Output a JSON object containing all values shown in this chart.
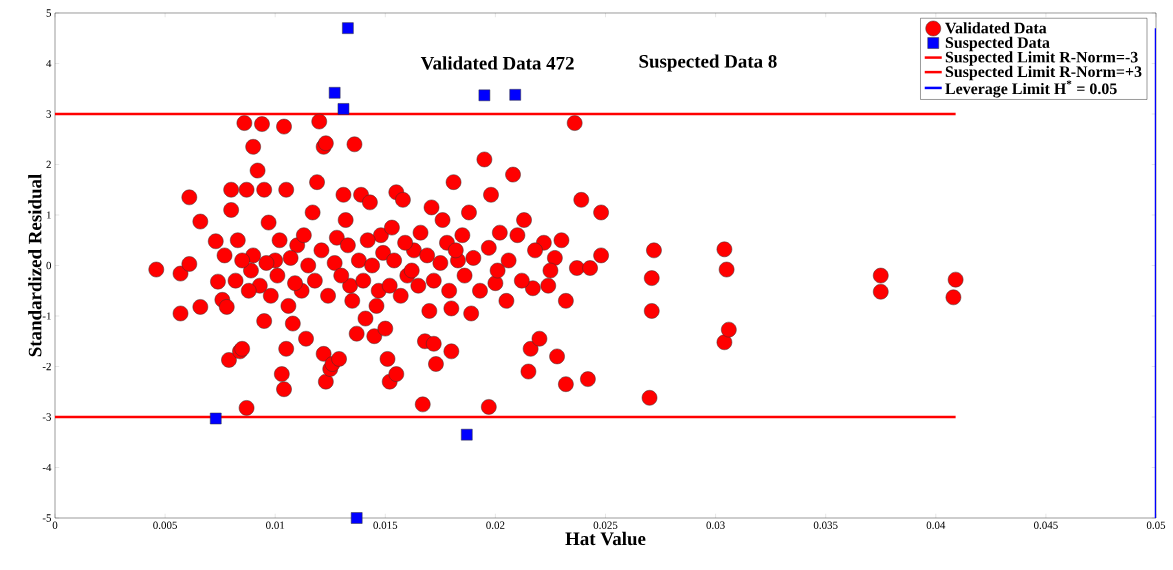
{
  "chart_data": {
    "type": "scatter",
    "xlabel": "Hat Value",
    "ylabel": "Standardized Residual",
    "annotations": [
      "Validated Data 472",
      "Suspected Data 8"
    ],
    "xlim": [
      0,
      0.05
    ],
    "ylim": [
      -5,
      5
    ],
    "xticks": [
      0,
      0.005,
      0.01,
      0.015,
      0.02,
      0.025,
      0.03,
      0.035,
      0.04,
      0.045,
      0.05
    ],
    "yticks": [
      -5,
      -4,
      -3,
      -2,
      -1,
      0,
      1,
      2,
      3,
      4,
      5
    ],
    "grid": false,
    "legend": "top right",
    "series": [
      {
        "name": "Validated Data",
        "marker": "circle",
        "color": "#ff0000",
        "x": [
          0.0046,
          0.0057,
          0.0057,
          0.0061,
          0.0061,
          0.0066,
          0.0066,
          0.0073,
          0.0074,
          0.0076,
          0.0078,
          0.0079,
          0.008,
          0.008,
          0.0083,
          0.0084,
          0.0085,
          0.0086,
          0.0087,
          0.0087,
          0.0089,
          0.009,
          0.0092,
          0.0094,
          0.0095,
          0.0095,
          0.0097,
          0.01,
          0.0101,
          0.0103,
          0.0104,
          0.0104,
          0.0105,
          0.0105,
          0.0106,
          0.0108,
          0.011,
          0.0112,
          0.0114,
          0.0117,
          0.0119,
          0.012,
          0.0122,
          0.0123,
          0.0122,
          0.0123,
          0.0125,
          0.0126,
          0.0128,
          0.0129,
          0.0131,
          0.0132,
          0.0134,
          0.0136,
          0.0137,
          0.0139,
          0.0141,
          0.0143,
          0.0145,
          0.0147,
          0.0148,
          0.015,
          0.0151,
          0.0152,
          0.0153,
          0.0155,
          0.0155,
          0.0158,
          0.016,
          0.0163,
          0.0166,
          0.0167,
          0.0168,
          0.017,
          0.0171,
          0.0172,
          0.0173,
          0.0176,
          0.0178,
          0.018,
          0.018,
          0.0181,
          0.0183,
          0.0185,
          0.0188,
          0.0189,
          0.0195,
          0.0197,
          0.0198,
          0.02,
          0.0202,
          0.0205,
          0.0208,
          0.021,
          0.0213,
          0.0215,
          0.0216,
          0.0217,
          0.022,
          0.0222,
          0.0224,
          0.0227,
          0.0228,
          0.023,
          0.0232,
          0.0232,
          0.0236,
          0.0237,
          0.0239,
          0.0242,
          0.0243,
          0.0248,
          0.0248,
          0.027,
          0.0271,
          0.0271,
          0.0272,
          0.0304,
          0.0304,
          0.0305,
          0.0306,
          0.0375,
          0.0375,
          0.0409,
          0.0408,
          0.009,
          0.0093,
          0.0096,
          0.0098,
          0.0102,
          0.0107,
          0.0109,
          0.0113,
          0.0115,
          0.0118,
          0.0121,
          0.0124,
          0.0127,
          0.013,
          0.0133,
          0.0135,
          0.0138,
          0.014,
          0.0142,
          0.0144,
          0.0146,
          0.0149,
          0.0152,
          0.0154,
          0.0157,
          0.0159,
          0.0162,
          0.0165,
          0.0169,
          0.0172,
          0.0175,
          0.0179,
          0.0182,
          0.0186,
          0.019,
          0.0193,
          0.0197,
          0.0201,
          0.0206,
          0.0212,
          0.0218,
          0.0225,
          0.0082,
          0.0085,
          0.0077,
          0.0088
        ],
        "values": [
          -0.08,
          -0.16,
          -0.95,
          1.35,
          0.03,
          0.87,
          -0.82,
          0.48,
          -0.32,
          -0.68,
          -0.82,
          -1.87,
          1.5,
          1.1,
          0.5,
          -1.7,
          -1.65,
          2.82,
          -2.82,
          1.5,
          -0.1,
          2.35,
          1.88,
          2.8,
          1.5,
          -1.1,
          0.85,
          0.1,
          -0.2,
          -2.15,
          -2.45,
          2.75,
          1.5,
          -1.65,
          -0.8,
          -1.15,
          0.4,
          -0.5,
          -1.45,
          1.05,
          1.65,
          2.85,
          2.35,
          2.42,
          -1.75,
          -2.3,
          -2.05,
          -1.95,
          0.55,
          -1.85,
          1.4,
          0.9,
          -0.4,
          2.4,
          -1.35,
          1.4,
          -1.05,
          1.25,
          -1.4,
          -0.5,
          0.6,
          -1.25,
          -1.85,
          -2.3,
          0.75,
          1.45,
          -2.15,
          1.3,
          -0.2,
          0.3,
          0.65,
          -2.75,
          -1.5,
          -0.9,
          1.15,
          -1.55,
          -1.95,
          0.9,
          0.45,
          -1.7,
          -0.85,
          1.65,
          0.1,
          0.6,
          1.05,
          -0.95,
          2.1,
          -2.8,
          1.4,
          -0.35,
          0.65,
          -0.7,
          1.8,
          0.6,
          0.9,
          -2.1,
          -1.65,
          -0.45,
          -1.45,
          0.45,
          -0.4,
          0.15,
          -1.8,
          0.5,
          -2.35,
          -0.7,
          2.82,
          -0.05,
          1.3,
          -2.25,
          -0.05,
          1.05,
          0.2,
          -2.62,
          -0.9,
          -0.25,
          0.3,
          0.32,
          -1.52,
          -0.08,
          -1.27,
          -0.2,
          -0.52,
          -0.28,
          -0.63,
          0.2,
          -0.4,
          0.05,
          -0.6,
          0.5,
          0.15,
          -0.35,
          0.6,
          0.0,
          -0.3,
          0.3,
          -0.6,
          0.05,
          -0.2,
          0.4,
          -0.7,
          0.1,
          -0.3,
          0.5,
          0.0,
          -0.8,
          0.25,
          -0.4,
          0.1,
          -0.6,
          0.45,
          -0.1,
          -0.4,
          0.2,
          -0.3,
          0.05,
          -0.5,
          0.3,
          -0.2,
          0.15,
          -0.5,
          0.35,
          -0.1,
          0.1,
          -0.3,
          0.3,
          -0.1,
          -0.3,
          0.1,
          0.2,
          -0.5
        ]
      },
      {
        "name": "Suspected Data",
        "marker": "square",
        "color": "#0000ff",
        "x": [
          0.0073,
          0.0127,
          0.0131,
          0.0133,
          0.0137,
          0.0187,
          0.0195,
          0.0209
        ],
        "values": [
          -3.03,
          3.42,
          3.1,
          4.7,
          -5.0,
          -3.35,
          3.37,
          3.38
        ]
      },
      {
        "name": "Suspected Limit R-Norm=-3",
        "type": "line",
        "color": "#ff0000",
        "x": [
          0,
          0.0409
        ],
        "values": [
          -3,
          -3
        ]
      },
      {
        "name": "Suspected Limit R-Norm=+3",
        "type": "line",
        "color": "#ff0000",
        "x": [
          0,
          0.0409
        ],
        "values": [
          3,
          3
        ]
      },
      {
        "name": "Leverage Limit H$^{*}$ = 0.05",
        "type": "line",
        "color": "#0000ff",
        "x": [
          0.05,
          0.05
        ],
        "values": [
          -5,
          4.7
        ]
      }
    ]
  }
}
